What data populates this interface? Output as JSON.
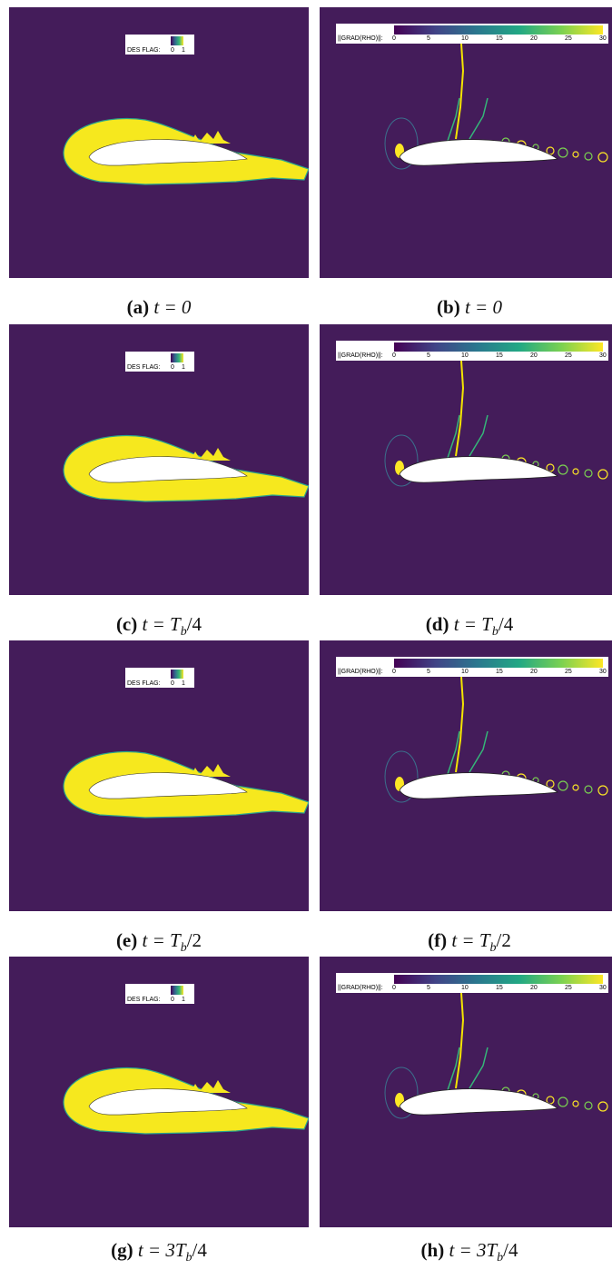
{
  "panels": [
    {
      "id": "a",
      "letter": "(a)",
      "time": "t = 0",
      "type": "des"
    },
    {
      "id": "b",
      "letter": "(b)",
      "time": "t = 0",
      "type": "grad"
    },
    {
      "id": "c",
      "letter": "(c)",
      "time": "t = T_b/4",
      "type": "des"
    },
    {
      "id": "d",
      "letter": "(d)",
      "time": "t = T_b/4",
      "type": "grad"
    },
    {
      "id": "e",
      "letter": "(e)",
      "time": "t = T_b/2",
      "type": "des"
    },
    {
      "id": "f",
      "letter": "(f)",
      "time": "t = T_b/2",
      "type": "grad"
    },
    {
      "id": "g",
      "letter": "(g)",
      "time": "t = 3T_b/4",
      "type": "des"
    },
    {
      "id": "h",
      "letter": "(h)",
      "time": "t = 3T_b/4",
      "type": "grad"
    }
  ],
  "des_legend": {
    "label": "DES FLAG:",
    "ticks": [
      "0",
      "1"
    ]
  },
  "grad_legend": {
    "label": "||GRAD(RHO)||:",
    "ticks": [
      "0",
      "5",
      "10",
      "15",
      "20",
      "25",
      "30"
    ]
  },
  "colors": {
    "background": "#441c5a",
    "des_region": "#f6e81e",
    "airfoil": "#ffffff",
    "shock": "#f4e500"
  }
}
